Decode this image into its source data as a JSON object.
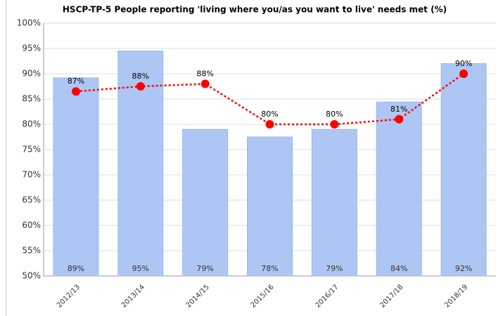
{
  "chart_data": {
    "type": "bar",
    "title": "HSCP-TP-5 People reporting 'living where you/as you want to live' needs met (%)",
    "categories": [
      "2012/13",
      "2013/14",
      "2014/15",
      "2015/16",
      "2016/17",
      "2017/18",
      "2018/19"
    ],
    "series": [
      {
        "type": "bar",
        "color": "#aec6f4",
        "values": [
          89.2,
          94.5,
          79,
          77.5,
          79,
          84.4,
          92
        ],
        "value_labels": [
          "89%",
          "95%",
          "79%",
          "78%",
          "79%",
          "84%",
          "92%"
        ]
      },
      {
        "type": "line",
        "color": "#ff0000",
        "values": [
          86.5,
          87.5,
          88,
          80,
          80,
          81,
          90
        ],
        "value_labels": [
          "87%",
          "88%",
          "88%",
          "80%",
          "80%",
          "81%",
          "90%"
        ]
      }
    ],
    "ylim": [
      50,
      100
    ],
    "yticks": [
      {
        "value": 50,
        "label": "50%"
      },
      {
        "value": 55,
        "label": "55%"
      },
      {
        "value": 60,
        "label": "60%"
      },
      {
        "value": 65,
        "label": "65%"
      },
      {
        "value": 70,
        "label": "70%"
      },
      {
        "value": 75,
        "label": "75%"
      },
      {
        "value": 80,
        "label": "80%"
      },
      {
        "value": 85,
        "label": "85%"
      },
      {
        "value": 90,
        "label": "90%"
      },
      {
        "value": 95,
        "label": "95%"
      },
      {
        "value": 100,
        "label": "100%"
      }
    ],
    "grid": true
  }
}
